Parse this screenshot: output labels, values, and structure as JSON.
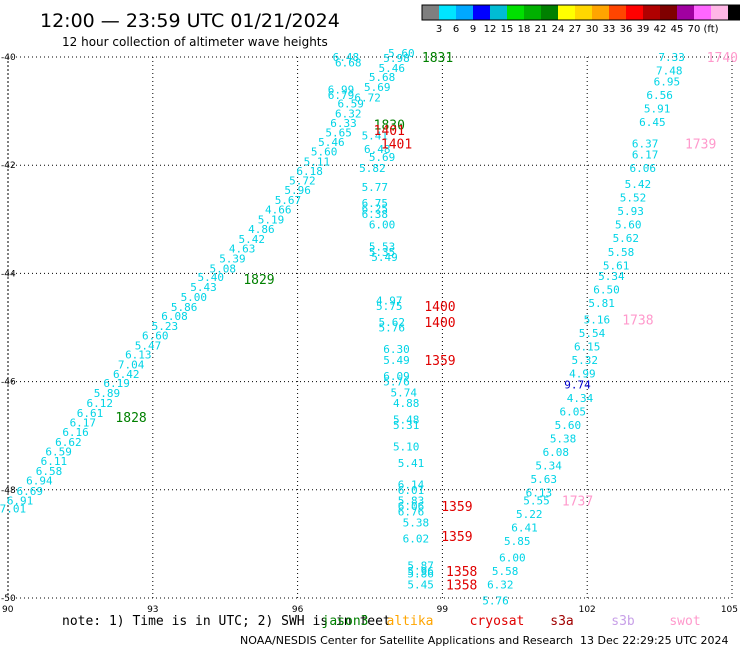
{
  "header": {
    "title": "12:00 — 23:59 UTC 01/21/2024",
    "subtitle": "12 hour collection of altimeter wave heights"
  },
  "colorbar": {
    "colors": [
      "#7f7f7f",
      "#00e5ff",
      "#00a8ff",
      "#0000ff",
      "#00bcd4",
      "#00e000",
      "#00b000",
      "#008000",
      "#ffff00",
      "#ffd700",
      "#ffa500",
      "#ff4500",
      "#ff0000",
      "#b00000",
      "#7f0000",
      "#a000a0",
      "#ff66ff",
      "#ffb6e6",
      "#000000"
    ],
    "labels": [
      "3",
      "6",
      "9",
      "12",
      "15",
      "18",
      "21",
      "24",
      "27",
      "30",
      "33",
      "36",
      "39",
      "42",
      "45",
      "70",
      "(ft)"
    ]
  },
  "footer": {
    "note": "note: 1) Time is in UTC; 2) SWH is in feet",
    "legend": [
      {
        "name": "jason3",
        "color": "#008000"
      },
      {
        "name": "altika",
        "color": "#ffa500"
      },
      {
        "name": "cryosat",
        "color": "#e00000"
      },
      {
        "name": "s3a",
        "color": "#a00000"
      },
      {
        "name": "s3b",
        "color": "#c8a0e8"
      },
      {
        "name": "swot",
        "color": "#ff99cc"
      }
    ],
    "credit": "NOAA/NESDIS Center for Satellite Applications and Research",
    "timestamp": "13 Dec 22:29:25 UTC 2024"
  },
  "chart_data": {
    "type": "scatter",
    "xlim": [
      90,
      105
    ],
    "ylim": [
      -50,
      -40
    ],
    "x_ticks": [
      "90",
      "93",
      "96",
      "99",
      "102",
      "105"
    ],
    "y_ticks": [
      "-40",
      "-42",
      "-44",
      "-46",
      "-48",
      "-50"
    ],
    "grid": true,
    "series": [
      {
        "name": "jason3",
        "color": "#00d4e6",
        "points": [
          [
            90.1,
            -48.35,
            "7.01"
          ],
          [
            90.25,
            -48.2,
            "6.91"
          ],
          [
            90.45,
            -48.02,
            "6.69"
          ],
          [
            90.65,
            -47.83,
            "6.94"
          ],
          [
            90.85,
            -47.65,
            "6.58"
          ],
          [
            90.95,
            -47.47,
            "6.11"
          ],
          [
            91.05,
            -47.29,
            "6.59"
          ],
          [
            91.25,
            -47.12,
            "6.62"
          ],
          [
            91.4,
            -46.93,
            "6.16"
          ],
          [
            91.55,
            -46.76,
            "6.17"
          ],
          [
            91.7,
            -46.58,
            "6.61"
          ],
          [
            91.9,
            -46.4,
            "6.12"
          ],
          [
            92.05,
            -46.21,
            "5.89"
          ],
          [
            92.25,
            -46.03,
            "6.19"
          ],
          [
            92.45,
            -45.86,
            "6.42"
          ],
          [
            92.55,
            -45.68,
            "7.04"
          ],
          [
            92.7,
            -45.5,
            "6.13"
          ],
          [
            92.9,
            -45.33,
            "5.47"
          ],
          [
            93.05,
            -45.15,
            "6.60"
          ],
          [
            93.25,
            -44.97,
            "5.23"
          ],
          [
            93.45,
            -44.79,
            "6.08"
          ],
          [
            93.65,
            -44.62,
            "5.86"
          ],
          [
            93.85,
            -44.44,
            "5.00"
          ],
          [
            94.05,
            -44.25,
            "5.43"
          ],
          [
            94.2,
            -44.07,
            "5.40"
          ],
          [
            94.45,
            -43.91,
            "5.08"
          ],
          [
            94.65,
            -43.72,
            "5.39"
          ],
          [
            94.85,
            -43.54,
            "4.63"
          ],
          [
            95.05,
            -43.36,
            "5.42"
          ],
          [
            95.25,
            -43.18,
            "4.86"
          ],
          [
            95.45,
            -43.0,
            "5.19"
          ],
          [
            95.6,
            -42.82,
            "4.66"
          ],
          [
            95.8,
            -42.64,
            "5.67"
          ],
          [
            96.0,
            -42.46,
            "5.96"
          ],
          [
            96.1,
            -42.28,
            "5.72"
          ],
          [
            96.25,
            -42.11,
            "6.18"
          ],
          [
            96.4,
            -41.93,
            "5.11"
          ],
          [
            96.55,
            -41.75,
            "5.60"
          ],
          [
            96.7,
            -41.57,
            "5.46"
          ],
          [
            96.85,
            -41.4,
            "5.65"
          ],
          [
            96.95,
            -41.22,
            "6.33"
          ],
          [
            97.05,
            -41.04,
            "6.32"
          ],
          [
            97.1,
            -40.86,
            "6.59"
          ],
          [
            96.9,
            -40.7,
            "6.79"
          ],
          [
            96.9,
            -40.6,
            "6.99"
          ],
          [
            97.45,
            -40.75,
            "6.72"
          ],
          [
            97.65,
            -40.55,
            "5.69"
          ],
          [
            97.75,
            -40.37,
            "5.68"
          ],
          [
            97.95,
            -40.2,
            "5.46"
          ],
          [
            98.05,
            -40.02,
            "5.98"
          ],
          [
            98.15,
            -39.93,
            "5.60"
          ],
          [
            97.0,
            -40.0,
            "6.48"
          ],
          [
            97.05,
            -40.1,
            "6.68"
          ],
          [
            97.65,
            -41.7,
            "6.48"
          ],
          [
            97.75,
            -41.85,
            "5.69"
          ],
          [
            97.6,
            -41.45,
            "5.41"
          ]
        ]
      },
      {
        "name": "altika",
        "color": "#00d4e6",
        "points": [
          [
            97.55,
            -42.05,
            "5.82"
          ],
          [
            97.6,
            -42.4,
            "5.77"
          ],
          [
            97.6,
            -42.7,
            "6.75"
          ],
          [
            97.6,
            -42.8,
            "6.25"
          ],
          [
            97.6,
            -42.9,
            "6.38"
          ],
          [
            97.75,
            -43.1,
            "6.00"
          ],
          [
            97.75,
            -43.5,
            "5.53"
          ],
          [
            97.75,
            -43.6,
            "5.35"
          ],
          [
            97.8,
            -43.7,
            "5.49"
          ],
          [
            97.9,
            -44.5,
            "4.97"
          ],
          [
            97.9,
            -44.6,
            "5.75"
          ],
          [
            97.95,
            -44.9,
            "5.62"
          ],
          [
            97.95,
            -45.0,
            "5.76"
          ],
          [
            98.05,
            -45.4,
            "6.30"
          ],
          [
            98.05,
            -45.6,
            "5.49"
          ],
          [
            98.05,
            -45.9,
            "6.09"
          ],
          [
            98.05,
            -46.0,
            "5.76"
          ],
          [
            98.2,
            -46.2,
            "5.74"
          ],
          [
            98.25,
            -46.4,
            "4.88"
          ],
          [
            98.25,
            -46.7,
            "5.48"
          ],
          [
            98.25,
            -46.8,
            "5.31"
          ],
          [
            98.25,
            -47.2,
            "5.10"
          ],
          [
            98.35,
            -47.5,
            "5.41"
          ],
          [
            98.35,
            -47.9,
            "6.14"
          ],
          [
            98.35,
            -48.0,
            "6.01"
          ],
          [
            98.35,
            -48.2,
            "5.83"
          ],
          [
            98.35,
            -48.3,
            "6.06"
          ],
          [
            98.35,
            -48.4,
            "6.76"
          ],
          [
            98.45,
            -48.6,
            "5.38"
          ],
          [
            98.45,
            -48.9,
            "6.02"
          ],
          [
            98.55,
            -49.4,
            "5.87"
          ],
          [
            98.55,
            -49.5,
            "5.96"
          ],
          [
            98.55,
            -49.55,
            "5.86"
          ],
          [
            98.55,
            -49.75,
            "5.45"
          ]
        ]
      },
      {
        "name": "s3b",
        "color": "#00d4e6",
        "points": [
          [
            103.75,
            -40.0,
            "7.33"
          ],
          [
            103.7,
            -40.25,
            "7.48"
          ],
          [
            103.65,
            -40.45,
            "6.95"
          ],
          [
            103.5,
            -40.7,
            "6.56"
          ],
          [
            103.45,
            -40.95,
            "5.91"
          ],
          [
            103.35,
            -41.2,
            "6.45"
          ],
          [
            103.2,
            -41.6,
            "6.37"
          ],
          [
            103.2,
            -41.8,
            "6.17"
          ],
          [
            103.15,
            -42.05,
            "6.06"
          ],
          [
            103.05,
            -42.35,
            "5.42"
          ],
          [
            102.95,
            -42.6,
            "5.52"
          ],
          [
            102.9,
            -42.85,
            "5.93"
          ],
          [
            102.85,
            -43.1,
            "5.60"
          ],
          [
            102.8,
            -43.35,
            "5.62"
          ],
          [
            102.7,
            -43.6,
            "5.58"
          ],
          [
            102.6,
            -43.85,
            "5.61"
          ],
          [
            102.5,
            -44.05,
            "5.34"
          ],
          [
            102.4,
            -44.3,
            "6.50"
          ],
          [
            102.3,
            -44.55,
            "5.81"
          ],
          [
            102.2,
            -44.85,
            "5.16"
          ],
          [
            102.1,
            -45.1,
            "5.54"
          ],
          [
            102.0,
            -45.35,
            "6.15"
          ],
          [
            101.95,
            -45.6,
            "5.32"
          ],
          [
            101.9,
            -45.85,
            "4.99"
          ],
          [
            101.85,
            -46.3,
            "4.34"
          ],
          [
            101.7,
            -46.55,
            "6.05"
          ],
          [
            101.6,
            -46.8,
            "5.60"
          ],
          [
            101.5,
            -47.05,
            "5.38"
          ],
          [
            101.35,
            -47.3,
            "6.08"
          ],
          [
            101.2,
            -47.55,
            "5.34"
          ],
          [
            101.1,
            -47.8,
            "5.63"
          ],
          [
            101.0,
            -48.05,
            "6.13"
          ],
          [
            100.95,
            -48.2,
            "5.55"
          ],
          [
            100.8,
            -48.45,
            "5.22"
          ],
          [
            100.7,
            -48.7,
            "6.41"
          ],
          [
            100.55,
            -48.95,
            "5.85"
          ],
          [
            100.45,
            -49.25,
            "6.00"
          ],
          [
            100.3,
            -49.5,
            "5.58"
          ],
          [
            100.2,
            -49.75,
            "6.32"
          ],
          [
            100.1,
            -50.05,
            "5.76"
          ]
        ]
      },
      {
        "name": "highlight",
        "color": "#0000cc",
        "points": [
          [
            101.8,
            -46.05,
            "9.74"
          ]
        ]
      }
    ],
    "time_labels": [
      {
        "x": 98.9,
        "y": -40.0,
        "text": "1831",
        "color": "#008000"
      },
      {
        "x": 97.9,
        "y": -41.25,
        "text": "1830",
        "color": "#008000"
      },
      {
        "x": 97.9,
        "y": -41.35,
        "text": "1401",
        "color": "#e00000"
      },
      {
        "x": 98.05,
        "y": -41.6,
        "text": "1401",
        "color": "#e00000"
      },
      {
        "x": 95.2,
        "y": -44.1,
        "text": "1829",
        "color": "#008000"
      },
      {
        "x": 92.55,
        "y": -46.65,
        "text": "1828",
        "color": "#008000"
      },
      {
        "x": 98.95,
        "y": -44.6,
        "text": "1400",
        "color": "#e00000"
      },
      {
        "x": 98.95,
        "y": -44.9,
        "text": "1400",
        "color": "#e00000"
      },
      {
        "x": 98.95,
        "y": -45.6,
        "text": "1359",
        "color": "#e00000"
      },
      {
        "x": 99.3,
        "y": -48.3,
        "text": "1359",
        "color": "#e00000"
      },
      {
        "x": 99.3,
        "y": -48.85,
        "text": "1359",
        "color": "#e00000"
      },
      {
        "x": 99.4,
        "y": -49.5,
        "text": "1358",
        "color": "#e00000"
      },
      {
        "x": 99.4,
        "y": -49.75,
        "text": "1358",
        "color": "#e00000"
      },
      {
        "x": 104.8,
        "y": -40.0,
        "text": "1740",
        "color": "#ff99cc"
      },
      {
        "x": 104.35,
        "y": -41.6,
        "text": "1739",
        "color": "#ff99cc"
      },
      {
        "x": 103.05,
        "y": -44.85,
        "text": "1738",
        "color": "#ff99cc"
      },
      {
        "x": 101.8,
        "y": -48.2,
        "text": "1737",
        "color": "#ff99cc"
      }
    ]
  }
}
